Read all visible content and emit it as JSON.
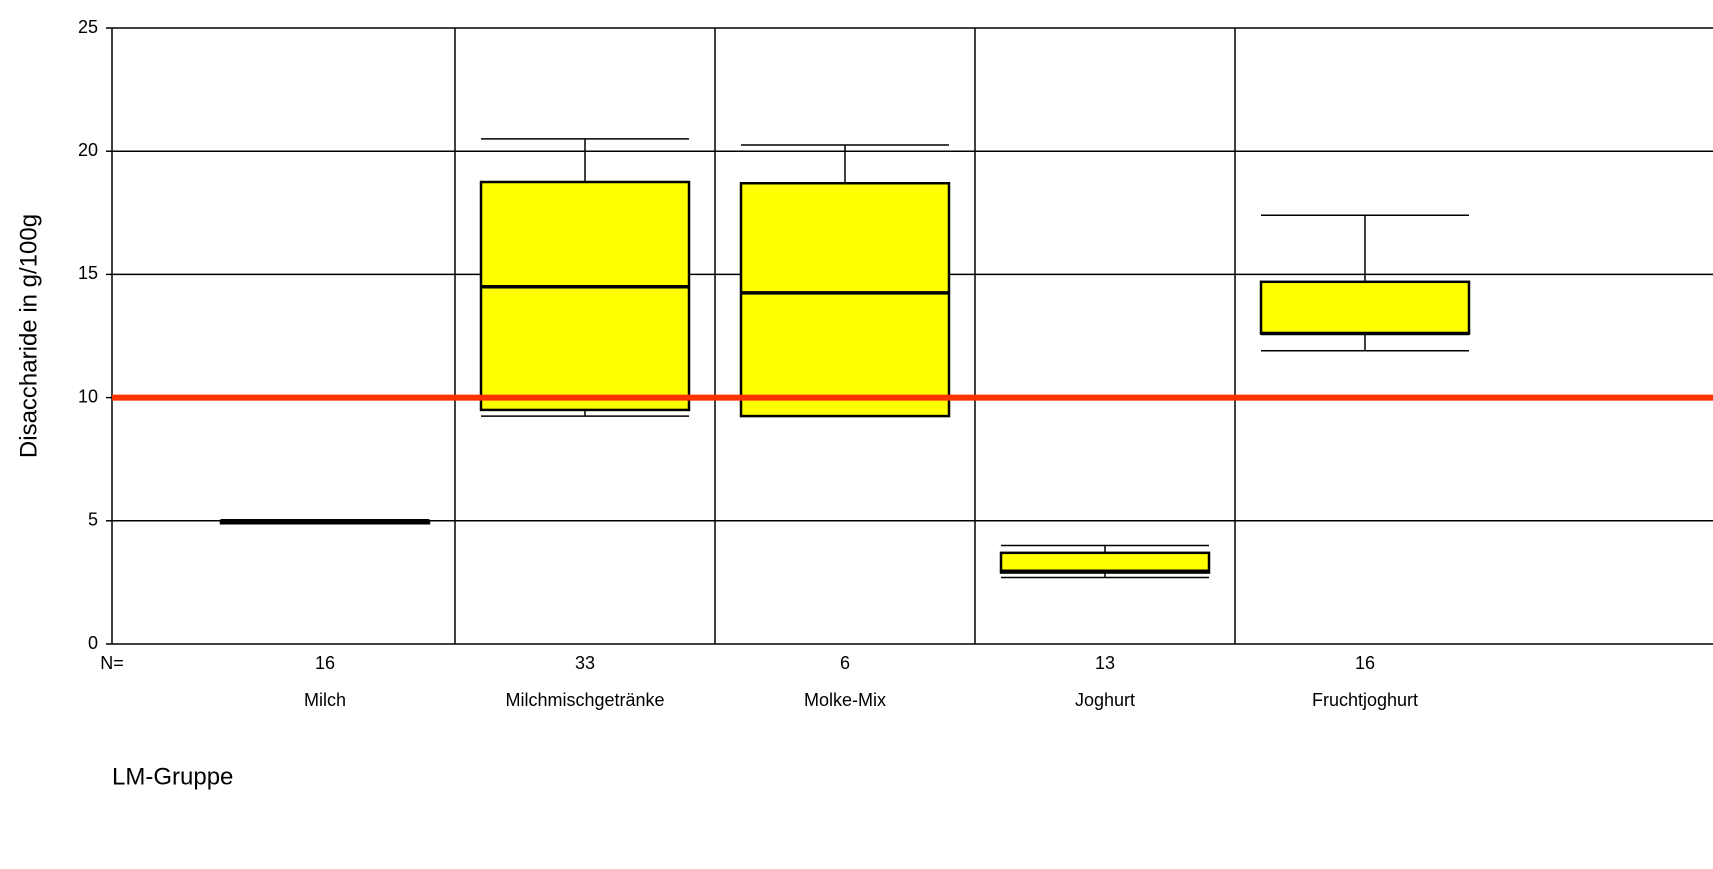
{
  "chart_data": {
    "type": "box",
    "y_label": "Disaccharide in g/100g",
    "x_label": "LM-Gruppe",
    "n_label": "N=",
    "categories": [
      "Milch",
      "Milchmischgetränke",
      "Molke-Mix",
      "Joghurt",
      "Fruchtjoghurt"
    ],
    "n": [
      16,
      33,
      6,
      13,
      16
    ],
    "boxes": [
      {
        "low": 4.9,
        "q1": 4.9,
        "median": 5.0,
        "q3": 5.0,
        "high": 5.0
      },
      {
        "low": 9.25,
        "q1": 9.5,
        "median": 14.5,
        "q3": 18.75,
        "high": 20.5
      },
      {
        "low": 9.25,
        "q1": 9.25,
        "median": 14.25,
        "q3": 18.7,
        "high": 20.25
      },
      {
        "low": 2.7,
        "q1": 2.9,
        "median": 2.95,
        "q3": 3.7,
        "high": 4.0
      },
      {
        "low": 11.9,
        "q1": 12.6,
        "median": 12.6,
        "q3": 14.7,
        "high": 17.4
      }
    ],
    "color": "#ffff00",
    "reference_line": {
      "value": 10,
      "color": "#ff3300"
    },
    "ylim": [
      0,
      25
    ],
    "yticks": [
      0,
      5,
      10,
      15,
      20,
      25
    ],
    "grid": true
  }
}
